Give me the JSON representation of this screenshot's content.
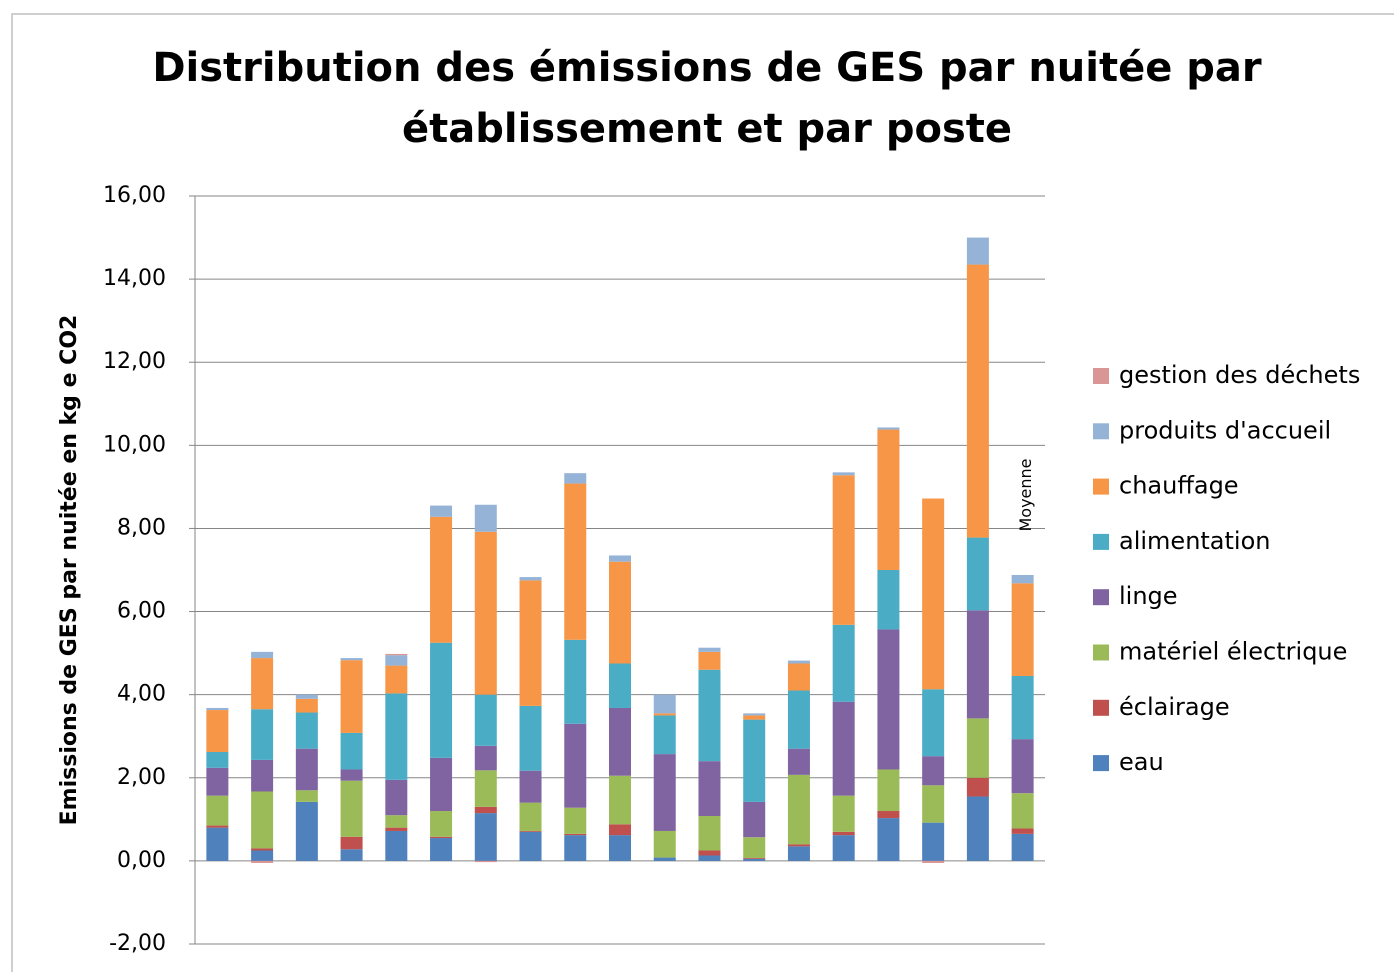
{
  "chart_data": {
    "type": "stacked_bar",
    "title": [
      "Distribution des émissions de GES  par nuitée par",
      "établissement et par poste"
    ],
    "y_label": "Emissions de GES  par nuitée en kg e CO2",
    "categories": [
      null,
      null,
      null,
      null,
      null,
      null,
      null,
      null,
      null,
      null,
      null,
      null,
      null,
      null,
      null,
      null,
      null,
      null,
      "Moyenne"
    ],
    "series": [
      {
        "name": "eau",
        "color": "#4F81BD",
        "values": [
          0.8,
          0.25,
          1.42,
          0.28,
          0.72,
          0.55,
          1.15,
          0.7,
          0.62,
          0.62,
          0.08,
          0.13,
          0.05,
          0.35,
          0.62,
          1.03,
          0.92,
          1.55,
          0.65
        ]
      },
      {
        "name": "éclairage",
        "color": "#C0504D",
        "values": [
          0.05,
          0.05,
          0,
          0.3,
          0.08,
          0.03,
          0.15,
          0.02,
          0.03,
          0.26,
          0,
          0.12,
          0.02,
          0.05,
          0.08,
          0.17,
          0,
          0.45,
          0.13
        ]
      },
      {
        "name": "matériel électrique",
        "color": "#9BBB59",
        "values": [
          0.72,
          1.37,
          0.28,
          1.35,
          0.3,
          0.62,
          0.88,
          0.68,
          0.63,
          1.17,
          0.64,
          0.83,
          0.5,
          1.67,
          0.87,
          1.0,
          0.9,
          1.43,
          0.85
        ]
      },
      {
        "name": "linge",
        "color": "#8064A2",
        "values": [
          0.67,
          0.76,
          1.0,
          0.27,
          0.85,
          1.28,
          0.59,
          0.77,
          2.02,
          1.63,
          1.85,
          1.32,
          0.85,
          0.63,
          2.26,
          3.37,
          0.7,
          2.6,
          1.3
        ]
      },
      {
        "name": "alimentation",
        "color": "#4BACC6",
        "values": [
          0.38,
          1.22,
          0.87,
          0.88,
          2.08,
          2.77,
          1.23,
          1.56,
          2.02,
          1.07,
          0.93,
          2.2,
          1.98,
          1.4,
          1.85,
          1.43,
          1.61,
          1.75,
          1.52
        ]
      },
      {
        "name": "chauffage",
        "color": "#F79646",
        "values": [
          1.01,
          1.23,
          0.33,
          1.75,
          0.67,
          3.03,
          3.92,
          3.02,
          3.76,
          2.45,
          0.05,
          0.43,
          0.1,
          0.65,
          3.6,
          3.38,
          4.59,
          6.57,
          2.23
        ]
      },
      {
        "name": "produits d'accueil",
        "color": "#95B3D7",
        "values": [
          0.05,
          0.15,
          0.1,
          0.05,
          0.25,
          0.27,
          0.65,
          0.08,
          0.25,
          0.15,
          0.45,
          0.1,
          0.05,
          0.07,
          0.07,
          0.05,
          0,
          0.65,
          0.2
        ]
      },
      {
        "name": "gestion des déchets",
        "color": "#D99694",
        "values": [
          0,
          -0.05,
          0,
          0,
          0.03,
          0,
          -0.03,
          0,
          0,
          0,
          0,
          0,
          0,
          0,
          0,
          0,
          -0.05,
          0,
          0
        ]
      }
    ],
    "ylim": [
      -2,
      16
    ],
    "yticks": [
      {
        "value": -2,
        "label": "-2,00"
      },
      {
        "value": 0,
        "label": "0,00"
      },
      {
        "value": 2,
        "label": "2,00"
      },
      {
        "value": 4,
        "label": "4,00"
      },
      {
        "value": 6,
        "label": "6,00"
      },
      {
        "value": 8,
        "label": "8,00"
      },
      {
        "value": 10,
        "label": "10,00"
      },
      {
        "value": 12,
        "label": "12,00"
      },
      {
        "value": 14,
        "label": "14,00"
      },
      {
        "value": 16,
        "label": "16,00"
      }
    ],
    "grid": true,
    "legend": "right"
  }
}
